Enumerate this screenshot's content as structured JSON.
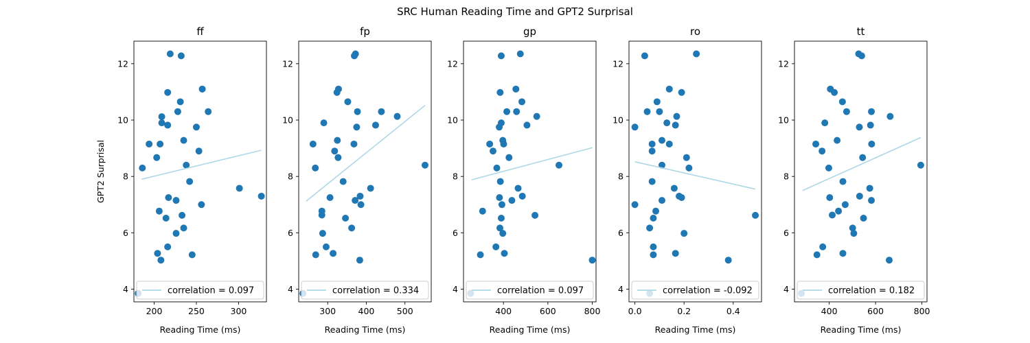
{
  "figure": {
    "suptitle": "SRC Human Reading Time and GPT2 Surprisal",
    "point_color": "#1f77b4",
    "fit_color": "#add8e6"
  },
  "chart_data": [
    {
      "type": "scatter",
      "title": "ff",
      "xlabel": "Reading Time (ms)",
      "ylabel": "GPT2 Surprisal",
      "xlim": [
        176,
        333
      ],
      "ylim": [
        3.55,
        12.8
      ],
      "xticks": [
        200,
        250,
        300
      ],
      "yticks": [
        4,
        6,
        8,
        10,
        12
      ],
      "legend": "correlation = 0.097",
      "legend_loc": "lower right",
      "fit": {
        "x": [
          185,
          327
        ],
        "y": [
          7.9,
          8.93
        ]
      },
      "points": [
        [
          219,
          12.35
        ],
        [
          232,
          12.28
        ],
        [
          257,
          11.1
        ],
        [
          216,
          10.98
        ],
        [
          231,
          10.65
        ],
        [
          264,
          10.3
        ],
        [
          228,
          10.3
        ],
        [
          209,
          10.12
        ],
        [
          209,
          9.9
        ],
        [
          216,
          9.82
        ],
        [
          250,
          9.75
        ],
        [
          235,
          9.28
        ],
        [
          194,
          9.15
        ],
        [
          207,
          9.15
        ],
        [
          253,
          8.9
        ],
        [
          203,
          8.67
        ],
        [
          238,
          8.4
        ],
        [
          186,
          8.3
        ],
        [
          242,
          7.82
        ],
        [
          301,
          7.58
        ],
        [
          327,
          7.3
        ],
        [
          217,
          7.25
        ],
        [
          226,
          7.15
        ],
        [
          256,
          7.0
        ],
        [
          206,
          6.77
        ],
        [
          233,
          6.62
        ],
        [
          214,
          6.52
        ],
        [
          235,
          6.17
        ],
        [
          226,
          5.98
        ],
        [
          216,
          5.5
        ],
        [
          204,
          5.27
        ],
        [
          245,
          5.22
        ],
        [
          208,
          5.03
        ],
        [
          181,
          3.85
        ]
      ]
    },
    {
      "type": "scatter",
      "title": "fp",
      "xlabel": "Reading Time (ms)",
      "xlim": [
        225,
        568
      ],
      "ylim": [
        3.55,
        12.8
      ],
      "xticks": [
        300,
        400,
        500
      ],
      "yticks": [
        4,
        6,
        8,
        10,
        12
      ],
      "legend": "correlation = 0.334",
      "legend_loc": "lower right",
      "fit": {
        "x": [
          244,
          552
        ],
        "y": [
          7.12,
          10.52
        ]
      },
      "points": [
        [
          372,
          12.35
        ],
        [
          369,
          12.28
        ],
        [
          328,
          11.1
        ],
        [
          324,
          10.98
        ],
        [
          352,
          10.65
        ],
        [
          377,
          10.3
        ],
        [
          439,
          10.3
        ],
        [
          480,
          10.13
        ],
        [
          290,
          9.9
        ],
        [
          424,
          9.82
        ],
        [
          375,
          9.75
        ],
        [
          325,
          9.28
        ],
        [
          262,
          9.15
        ],
        [
          368,
          9.15
        ],
        [
          318,
          8.9
        ],
        [
          327,
          8.67
        ],
        [
          552,
          8.4
        ],
        [
          268,
          8.3
        ],
        [
          340,
          7.82
        ],
        [
          411,
          7.58
        ],
        [
          384,
          7.3
        ],
        [
          306,
          7.25
        ],
        [
          371,
          7.15
        ],
        [
          386,
          7.0
        ],
        [
          285,
          6.77
        ],
        [
          285,
          6.63
        ],
        [
          346,
          6.52
        ],
        [
          362,
          6.17
        ],
        [
          287,
          5.98
        ],
        [
          296,
          5.5
        ],
        [
          314,
          5.27
        ],
        [
          269,
          5.22
        ],
        [
          383,
          5.03
        ],
        [
          236,
          3.85
        ]
      ]
    },
    {
      "type": "scatter",
      "title": "gp",
      "xlabel": "Reading Time (ms)",
      "xlim": [
        220,
        817
      ],
      "ylim": [
        3.55,
        12.8
      ],
      "xticks": [
        400,
        600,
        800
      ],
      "yticks": [
        4,
        6,
        8,
        10,
        12
      ],
      "legend": "correlation = 0.097",
      "legend_loc": "lower right",
      "fit": {
        "x": [
          256,
          801
        ],
        "y": [
          7.88,
          9.02
        ]
      },
      "points": [
        [
          390,
          12.28
        ],
        [
          476,
          12.35
        ],
        [
          456,
          11.1
        ],
        [
          385,
          10.98
        ],
        [
          483,
          10.65
        ],
        [
          415,
          10.3
        ],
        [
          459,
          10.3
        ],
        [
          550,
          10.13
        ],
        [
          390,
          9.9
        ],
        [
          506,
          9.82
        ],
        [
          381,
          9.75
        ],
        [
          397,
          9.28
        ],
        [
          338,
          9.15
        ],
        [
          401,
          9.15
        ],
        [
          353,
          8.9
        ],
        [
          425,
          8.67
        ],
        [
          650,
          8.4
        ],
        [
          370,
          8.3
        ],
        [
          386,
          7.82
        ],
        [
          466,
          7.58
        ],
        [
          485,
          7.3
        ],
        [
          382,
          7.25
        ],
        [
          438,
          7.15
        ],
        [
          393,
          7.0
        ],
        [
          306,
          6.77
        ],
        [
          542,
          6.62
        ],
        [
          390,
          6.52
        ],
        [
          384,
          6.17
        ],
        [
          397,
          5.98
        ],
        [
          366,
          5.5
        ],
        [
          404,
          5.27
        ],
        [
          296,
          5.22
        ],
        [
          800,
          5.03
        ],
        [
          252,
          3.85
        ]
      ]
    },
    {
      "type": "scatter",
      "title": "ro",
      "xlabel": "Reading Time (ms)",
      "xlim": [
        -0.024,
        0.515
      ],
      "ylim": [
        3.55,
        12.8
      ],
      "xticks": [
        0.0,
        0.2,
        0.4
      ],
      "xtick_labels": [
        "0.0",
        "0.2",
        "0.4"
      ],
      "yticks": [
        4,
        6,
        8,
        10,
        12
      ],
      "legend": "correlation = -0.092",
      "legend_loc": "lower right",
      "fit": {
        "x": [
          0.0,
          0.49
        ],
        "y": [
          8.52,
          7.55
        ]
      },
      "points": [
        [
          0.04,
          12.28
        ],
        [
          0.25,
          12.35
        ],
        [
          0.14,
          11.1
        ],
        [
          0.19,
          10.98
        ],
        [
          0.09,
          10.65
        ],
        [
          0.05,
          10.3
        ],
        [
          0.1,
          10.3
        ],
        [
          0.17,
          10.13
        ],
        [
          0.0,
          9.75
        ],
        [
          0.13,
          9.9
        ],
        [
          0.165,
          9.82
        ],
        [
          0.11,
          9.28
        ],
        [
          0.07,
          9.15
        ],
        [
          0.14,
          9.15
        ],
        [
          0.07,
          8.9
        ],
        [
          0.21,
          8.67
        ],
        [
          0.11,
          8.4
        ],
        [
          0.22,
          8.3
        ],
        [
          0.07,
          7.82
        ],
        [
          0.16,
          7.58
        ],
        [
          0.18,
          7.3
        ],
        [
          0.19,
          7.25
        ],
        [
          0.11,
          7.15
        ],
        [
          0.0,
          7.0
        ],
        [
          0.085,
          6.77
        ],
        [
          0.49,
          6.62
        ],
        [
          0.075,
          6.52
        ],
        [
          0.06,
          6.17
        ],
        [
          0.2,
          5.98
        ],
        [
          0.075,
          5.5
        ],
        [
          0.165,
          5.27
        ],
        [
          0.075,
          5.22
        ],
        [
          0.38,
          5.03
        ],
        [
          0.06,
          3.85
        ]
      ]
    },
    {
      "type": "scatter",
      "title": "tt",
      "xlabel": "Reading Time (ms)",
      "xlim": [
        250,
        822
      ],
      "ylim": [
        3.55,
        12.8
      ],
      "xticks": [
        400,
        600,
        800
      ],
      "yticks": [
        4,
        6,
        8,
        10,
        12
      ],
      "legend": "correlation = 0.182",
      "legend_loc": "lower right",
      "fit": {
        "x": [
          285,
          795
        ],
        "y": [
          7.5,
          9.38
        ]
      },
      "points": [
        [
          527,
          12.35
        ],
        [
          540,
          12.28
        ],
        [
          405,
          11.1
        ],
        [
          422,
          10.98
        ],
        [
          457,
          10.65
        ],
        [
          475,
          10.3
        ],
        [
          582,
          10.3
        ],
        [
          663,
          10.13
        ],
        [
          381,
          9.9
        ],
        [
          578,
          9.82
        ],
        [
          530,
          9.75
        ],
        [
          434,
          9.28
        ],
        [
          342,
          9.15
        ],
        [
          583,
          9.15
        ],
        [
          369,
          8.9
        ],
        [
          544,
          8.67
        ],
        [
          795,
          8.4
        ],
        [
          398,
          8.3
        ],
        [
          459,
          7.82
        ],
        [
          575,
          7.58
        ],
        [
          531,
          7.3
        ],
        [
          402,
          7.25
        ],
        [
          582,
          7.15
        ],
        [
          469,
          7.0
        ],
        [
          440,
          6.77
        ],
        [
          413,
          6.63
        ],
        [
          548,
          6.52
        ],
        [
          501,
          6.17
        ],
        [
          506,
          5.98
        ],
        [
          372,
          5.5
        ],
        [
          459,
          5.27
        ],
        [
          347,
          5.22
        ],
        [
          659,
          5.03
        ],
        [
          280,
          3.85
        ]
      ]
    }
  ]
}
